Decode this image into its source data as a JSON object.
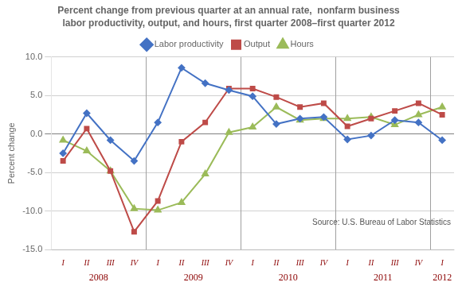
{
  "chart_data": {
    "type": "line",
    "title": "Percent change from previous quarter at an annual rate,  nonfarm business",
    "subtitle": "labor productivity, output, and hours, first quarter 2008–first quarter 2012",
    "ylabel": "Percent change",
    "annotations": [
      "Source: U.S. Bureau of Labor Statistics"
    ],
    "categories": [
      "I",
      "II",
      "III",
      "IV",
      "I",
      "II",
      "III",
      "IV",
      "I",
      "II",
      "III",
      "IV",
      "I",
      "II",
      "III",
      "IV",
      "I"
    ],
    "x_groups": [
      {
        "label": "2008",
        "count": 4
      },
      {
        "label": "2009",
        "count": 4
      },
      {
        "label": "2010",
        "count": 4
      },
      {
        "label": "2011",
        "count": 4
      },
      {
        "label": "2012",
        "count": 1
      }
    ],
    "series": [
      {
        "name": "Labor productivity",
        "color": "#4472C4",
        "marker": "diamond",
        "values": [
          -2.5,
          2.7,
          -0.8,
          -3.5,
          1.5,
          8.6,
          6.6,
          5.7,
          4.9,
          1.3,
          2.0,
          2.2,
          -0.7,
          -0.2,
          1.8,
          1.5,
          -0.8
        ]
      },
      {
        "name": "Output",
        "color": "#BE4B48",
        "marker": "square",
        "values": [
          -3.5,
          0.7,
          -4.8,
          -12.7,
          -8.7,
          -1.0,
          1.5,
          5.9,
          5.9,
          4.8,
          3.5,
          4.0,
          1.0,
          2.0,
          3.0,
          4.0,
          2.5
        ]
      },
      {
        "name": "Hours",
        "color": "#9BBB59",
        "marker": "triangle",
        "values": [
          -0.8,
          -2.2,
          -4.8,
          -9.7,
          -9.9,
          -8.9,
          -5.2,
          0.2,
          0.9,
          3.5,
          1.8,
          2.0,
          2.0,
          2.2,
          1.2,
          2.5,
          3.5
        ]
      }
    ],
    "ylim": [
      -15.0,
      10.0
    ],
    "yticks": [
      {
        "value": -15.0,
        "label": "-15.0"
      },
      {
        "value": -10.0,
        "label": "-10.0"
      },
      {
        "value": -5.0,
        "label": "-5.0"
      },
      {
        "value": 0.0,
        "label": "0.0"
      },
      {
        "value": 5.0,
        "label": "5.0"
      },
      {
        "value": 10.0,
        "label": "10.0"
      }
    ],
    "grid": true,
    "legend": "top"
  }
}
